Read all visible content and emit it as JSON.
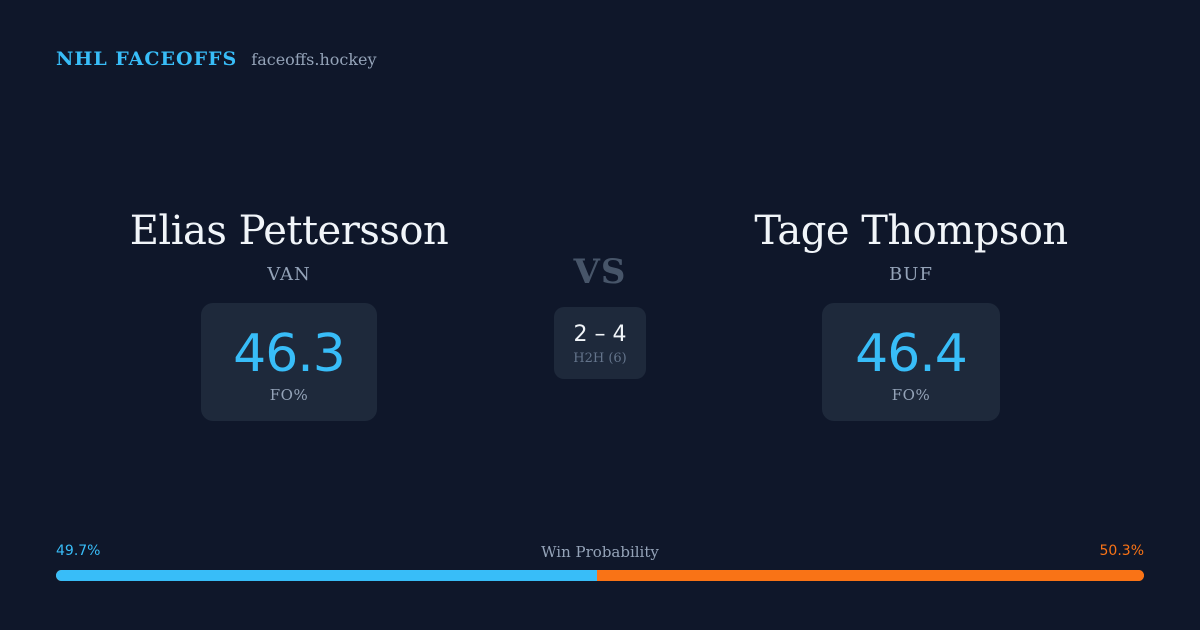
{
  "brand": {
    "name": "NHL FACEOFFS",
    "url": "faceoffs.hockey"
  },
  "player1": {
    "name": "Elias Pettersson",
    "team": "VAN",
    "fo_pct": "46.3",
    "fo_label": "FO%"
  },
  "player2": {
    "name": "Tage Thompson",
    "team": "BUF",
    "fo_pct": "46.4",
    "fo_label": "FO%"
  },
  "vs_label": "VS",
  "h2h": {
    "score": "2 – 4",
    "label": "H2H (6)"
  },
  "win_probability": {
    "title": "Win Probability",
    "left_label": "49.7%",
    "right_label": "50.3%",
    "left_value": 49.7,
    "right_value": 50.3
  },
  "colors": {
    "background": "#0f172a",
    "accent_left": "#38bdf8",
    "accent_right": "#f97316",
    "card": "#1e293b"
  }
}
